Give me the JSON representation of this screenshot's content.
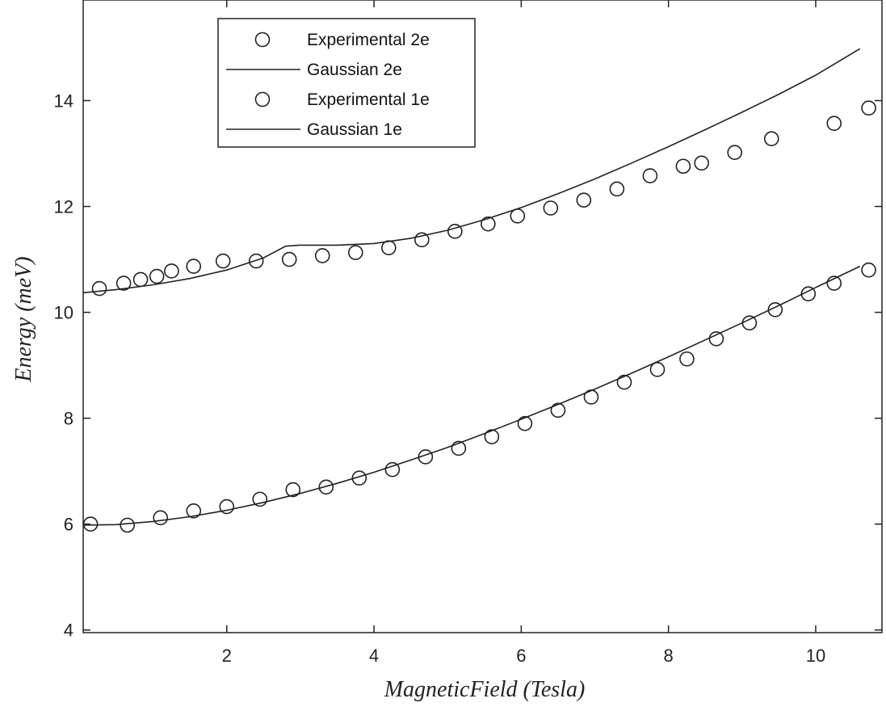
{
  "chart_data": {
    "type": "scatter",
    "title": "",
    "xlabel": "MagneticField (Tesla)",
    "ylabel": "Energy (meV)",
    "xlim": [
      0.05,
      10.9
    ],
    "ylim": [
      3.95,
      15.9
    ],
    "xticks": [
      2,
      4,
      6,
      8,
      10
    ],
    "yticks": [
      4,
      6,
      8,
      10,
      12,
      14
    ],
    "xtick_labels": [
      "2",
      "4",
      "6",
      "8",
      "10"
    ],
    "ytick_labels": [
      "4",
      "6",
      "8",
      "10",
      "12",
      "14"
    ],
    "grid": false,
    "legend_position": "top-left",
    "series": [
      {
        "name": "Experimental 2e",
        "kind": "markers",
        "marker": "open-circle",
        "x": [
          0.27,
          0.6,
          0.83,
          1.05,
          1.25,
          1.55,
          1.95,
          2.4,
          2.85,
          3.3,
          3.75,
          4.2,
          4.65,
          5.1,
          5.55,
          5.95,
          6.4,
          6.85,
          7.3,
          7.75,
          8.2,
          8.45,
          8.9,
          9.4,
          10.25,
          10.72
        ],
        "y": [
          10.45,
          10.55,
          10.62,
          10.68,
          10.78,
          10.87,
          10.97,
          10.97,
          11.0,
          11.07,
          11.13,
          11.22,
          11.37,
          11.53,
          11.67,
          11.82,
          11.97,
          12.12,
          12.33,
          12.58,
          12.76,
          12.82,
          13.02,
          13.28,
          13.57,
          13.86
        ]
      },
      {
        "name": "Gaussian 2e",
        "kind": "line",
        "x": [
          0.05,
          0.5,
          1.0,
          1.5,
          2.0,
          2.5,
          2.8,
          3.0,
          3.5,
          4.0,
          4.5,
          5.0,
          5.5,
          6.0,
          6.5,
          7.0,
          7.5,
          8.0,
          8.5,
          9.0,
          9.5,
          10.0,
          10.6
        ],
        "y": [
          10.37,
          10.43,
          10.52,
          10.64,
          10.8,
          11.03,
          11.25,
          11.27,
          11.27,
          11.3,
          11.4,
          11.55,
          11.75,
          11.98,
          12.24,
          12.52,
          12.82,
          13.13,
          13.45,
          13.78,
          14.12,
          14.48,
          14.98
        ]
      },
      {
        "name": "Experimental 1e",
        "kind": "markers",
        "marker": "open-circle",
        "x": [
          0.15,
          0.65,
          1.1,
          1.55,
          2.0,
          2.45,
          2.9,
          3.35,
          3.8,
          4.25,
          4.7,
          5.15,
          5.6,
          6.05,
          6.5,
          6.95,
          7.4,
          7.85,
          8.25,
          8.65,
          9.1,
          9.45,
          9.9,
          10.25,
          10.72
        ],
        "y": [
          6.0,
          5.98,
          6.12,
          6.25,
          6.33,
          6.47,
          6.65,
          6.7,
          6.87,
          7.03,
          7.27,
          7.43,
          7.65,
          7.9,
          8.15,
          8.4,
          8.68,
          8.92,
          9.12,
          9.5,
          9.8,
          10.05,
          10.35,
          10.55,
          10.8
        ]
      },
      {
        "name": "Gaussian 1e",
        "kind": "line",
        "x": [
          0.05,
          0.5,
          1.0,
          1.5,
          2.0,
          2.5,
          3.0,
          3.5,
          4.0,
          4.5,
          5.0,
          5.5,
          6.0,
          6.5,
          7.0,
          7.5,
          8.0,
          8.5,
          9.0,
          9.5,
          10.0,
          10.6
        ],
        "y": [
          5.98,
          5.99,
          6.05,
          6.14,
          6.26,
          6.41,
          6.58,
          6.77,
          6.98,
          7.21,
          7.45,
          7.71,
          7.98,
          8.26,
          8.55,
          8.85,
          9.16,
          9.48,
          9.8,
          10.13,
          10.47,
          10.87
        ]
      }
    ]
  },
  "legend": {
    "items": [
      {
        "label": "Experimental 2e",
        "symbol": "circle"
      },
      {
        "label": "Gaussian 2e",
        "symbol": "line"
      },
      {
        "label": "Experimental 1e",
        "symbol": "circle"
      },
      {
        "label": "Gaussian 1e",
        "symbol": "line"
      }
    ]
  },
  "colors": {
    "ink": "#222222",
    "background": "#ffffff"
  }
}
